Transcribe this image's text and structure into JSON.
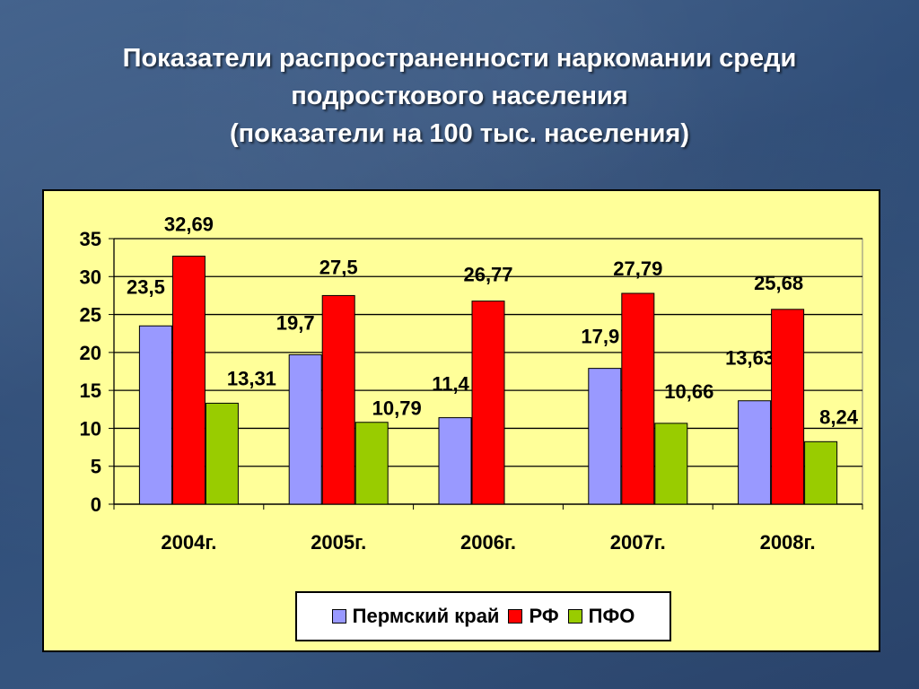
{
  "title": {
    "line1": "Показатели распространенности наркомании среди",
    "line2": "подросткового населения",
    "line3": "(показатели на 100 тыс. населения)"
  },
  "colors": {
    "perm": "#9999ff",
    "rf": "#ff0000",
    "pfo": "#99cc00",
    "plot_bg": "#ffff99"
  },
  "chart_data": {
    "type": "bar",
    "categories": [
      "2004г.",
      "2005г.",
      "2006г.",
      "2007г.",
      "2008г."
    ],
    "series": [
      {
        "name": "Пермский край",
        "values": [
          23.5,
          19.7,
          11.4,
          17.9,
          13.63
        ],
        "labels": [
          "23,5",
          "19,7",
          "11,4",
          "17,9",
          "13,63"
        ]
      },
      {
        "name": "РФ",
        "values": [
          32.69,
          27.5,
          26.77,
          27.79,
          25.68
        ],
        "labels": [
          "32,69",
          "27,5",
          "26,77",
          "27,79",
          "25,68"
        ]
      },
      {
        "name": "ПФО",
        "values": [
          13.31,
          10.79,
          null,
          10.66,
          8.24
        ],
        "labels": [
          "13,31",
          "10,79",
          null,
          "10,66",
          "8,24"
        ]
      }
    ],
    "ylim": [
      0,
      35
    ],
    "yticks": [
      "0",
      "5",
      "10",
      "15",
      "20",
      "25",
      "30",
      "35"
    ],
    "grid": true,
    "legend_position": "bottom"
  },
  "legend": {
    "items": [
      "Пермский край",
      "РФ",
      "ПФО"
    ]
  }
}
